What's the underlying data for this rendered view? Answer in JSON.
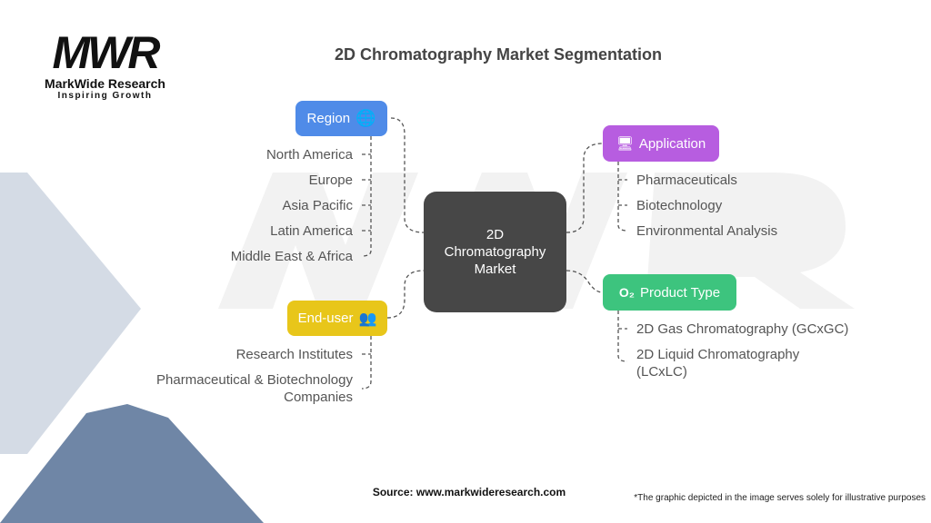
{
  "logo": {
    "mark": "MWR",
    "name": "MarkWide Research",
    "tagline": "Inspiring Growth"
  },
  "title": "2D Chromatography Market Segmentation",
  "center": {
    "line1": "2D",
    "line2": "Chromatography",
    "line3": "Market"
  },
  "categories": {
    "region": {
      "label": "Region",
      "icon": "globe-icon",
      "color": "#4F8BE8",
      "items": [
        "North America",
        "Europe",
        "Asia Pacific",
        "Latin America",
        "Middle East & Africa"
      ]
    },
    "end_user": {
      "label": "End-user",
      "icon": "users-refresh-icon",
      "color": "#E8C61A",
      "items": [
        "Research Institutes",
        "Pharmaceutical & Biotechnology",
        "Companies"
      ]
    },
    "application": {
      "label": "Application",
      "icon": "computer-lab-icon",
      "color": "#B75DE0",
      "items": [
        "Pharmaceuticals",
        "Biotechnology",
        "Environmental Analysis"
      ]
    },
    "product_type": {
      "label": "Product Type",
      "icon": "oxygen-tank-icon",
      "color": "#3DC47E",
      "items": [
        "2D Gas Chromatography (GCxGC)",
        "2D Liquid Chromatography",
        "(LCxLC)"
      ]
    }
  },
  "footer": {
    "source": "Source: www.markwideresearch.com",
    "note": "*The graphic depicted in the image serves solely for illustrative purposes"
  }
}
